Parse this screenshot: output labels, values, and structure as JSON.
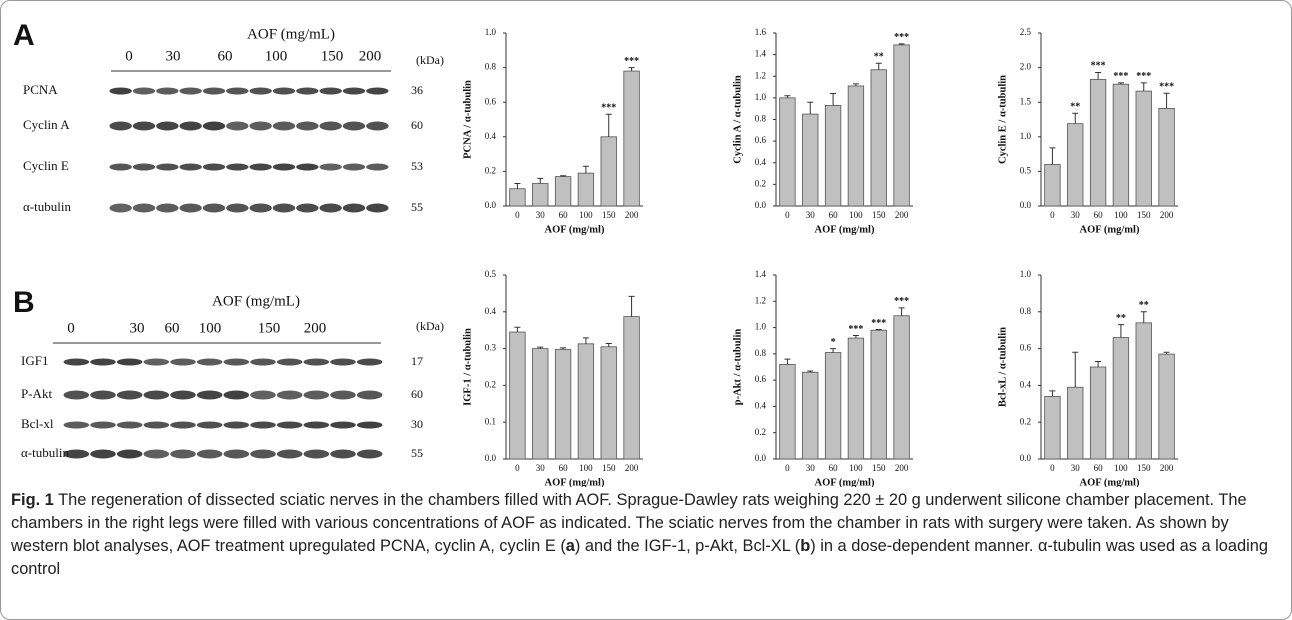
{
  "figure": {
    "panels": [
      {
        "label": "A",
        "blot": {
          "header": "AOF (mg/mL)",
          "doses": [
            "0",
            "30",
            "60",
            "100",
            "150",
            "200"
          ],
          "unit": "(kDa)",
          "rows": [
            {
              "name": "PCNA",
              "kda": 36
            },
            {
              "name": "Cyclin A",
              "kda": 60
            },
            {
              "name": "Cyclin E",
              "kda": 53
            },
            {
              "name": "α-tubulin",
              "kda": 55
            }
          ]
        }
      },
      {
        "label": "B",
        "blot": {
          "header": "AOF (mg/mL)",
          "doses": [
            "0",
            "30",
            "60",
            "100",
            "150",
            "200"
          ],
          "unit": "(kDa)",
          "rows": [
            {
              "name": "IGF1",
              "kda": 17
            },
            {
              "name": "P-Akt",
              "kda": 60
            },
            {
              "name": "Bcl-xl",
              "kda": 30
            },
            {
              "name": "α-tubulin",
              "kda": 55
            }
          ]
        }
      }
    ]
  },
  "chart_data": [
    {
      "type": "bar",
      "ylabel": "PCNA / α-tubulin",
      "xlabel": "AOF (mg/ml)",
      "color": "#c0c0c0",
      "categories": [
        "0",
        "30",
        "60",
        "100",
        "150",
        "200"
      ],
      "values": [
        0.1,
        0.13,
        0.17,
        0.19,
        0.4,
        0.78
      ],
      "errors": [
        0.03,
        0.03,
        0.005,
        0.04,
        0.13,
        0.02
      ],
      "annotations": [
        null,
        null,
        null,
        null,
        "***",
        "***"
      ],
      "ylim": [
        0,
        1.0
      ],
      "yticks": [
        {
          "value": 0,
          "label": "0.0"
        },
        0.2,
        0.4,
        0.6,
        0.8,
        {
          "value": 1.0,
          "label": "1.0"
        }
      ]
    },
    {
      "type": "bar",
      "ylabel": "Cyclin A / α-tubulin",
      "xlabel": "AOF (mg/ml)",
      "color": "#c0c0c0",
      "categories": [
        "0",
        "30",
        "60",
        "100",
        "150",
        "200"
      ],
      "values": [
        1.0,
        0.85,
        0.93,
        1.11,
        1.26,
        1.49
      ],
      "errors": [
        0.02,
        0.11,
        0.11,
        0.02,
        0.06,
        0.01
      ],
      "annotations": [
        null,
        null,
        null,
        null,
        "**",
        "***"
      ],
      "ylim": [
        0,
        1.6
      ],
      "yticks": [
        {
          "value": 0,
          "label": "0.0"
        },
        0.2,
        0.4,
        0.6,
        0.8,
        {
          "value": 1.0,
          "label": "1.0"
        },
        1.2,
        1.4,
        1.6
      ]
    },
    {
      "type": "bar",
      "ylabel": "Cyclin E / α-tubulin",
      "xlabel": "AOF (mg/ml)",
      "color": "#c0c0c0",
      "categories": [
        "0",
        "30",
        "60",
        "100",
        "150",
        "200"
      ],
      "values": [
        0.6,
        1.19,
        1.83,
        1.76,
        1.66,
        1.41
      ],
      "errors": [
        0.24,
        0.15,
        0.1,
        0.02,
        0.12,
        0.22
      ],
      "annotations": [
        null,
        "**",
        "***",
        "***",
        "***",
        "***"
      ],
      "ylim": [
        0,
        2.5
      ],
      "yticks": [
        {
          "value": 0,
          "label": "0.0"
        },
        0.5,
        {
          "value": 1.0,
          "label": "1.0"
        },
        1.5,
        {
          "value": 2.0,
          "label": "2.0"
        },
        2.5
      ]
    },
    {
      "type": "bar",
      "ylabel": "IGF-1 / α-tubulin",
      "xlabel": "AOF (mg/ml)",
      "color": "#c0c0c0",
      "categories": [
        "0",
        "30",
        "60",
        "100",
        "150",
        "200"
      ],
      "values": [
        0.345,
        0.3,
        0.298,
        0.313,
        0.305,
        0.387
      ],
      "errors": [
        0.013,
        0.004,
        0.004,
        0.016,
        0.009,
        0.055
      ],
      "annotations": [
        null,
        null,
        null,
        null,
        null,
        null
      ],
      "ylim": [
        0,
        0.5
      ],
      "yticks": [
        {
          "value": 0,
          "label": "0.0"
        },
        0.1,
        0.2,
        0.3,
        0.4,
        0.5
      ]
    },
    {
      "type": "bar",
      "ylabel": "p-Akt / α-tubulin",
      "xlabel": "AOF (mg/ml)",
      "color": "#c0c0c0",
      "categories": [
        "0",
        "30",
        "60",
        "100",
        "150",
        "200"
      ],
      "values": [
        0.72,
        0.66,
        0.81,
        0.92,
        0.98,
        1.09
      ],
      "errors": [
        0.04,
        0.01,
        0.03,
        0.02,
        0.005,
        0.06
      ],
      "annotations": [
        null,
        null,
        "*",
        "***",
        "***",
        "***"
      ],
      "ylim": [
        0,
        1.4
      ],
      "yticks": [
        {
          "value": 0,
          "label": "0.0"
        },
        0.2,
        0.4,
        0.6,
        0.8,
        {
          "value": 1.0,
          "label": "1.0"
        },
        1.2,
        1.4
      ]
    },
    {
      "type": "bar",
      "ylabel": "Bcl-xL / α-tubulin",
      "xlabel": "AOF (mg/ml)",
      "color": "#c0c0c0",
      "categories": [
        "0",
        "30",
        "60",
        "100",
        "150",
        "200"
      ],
      "values": [
        0.34,
        0.39,
        0.5,
        0.66,
        0.74,
        0.57
      ],
      "errors": [
        0.03,
        0.19,
        0.03,
        0.07,
        0.06,
        0.01
      ],
      "annotations": [
        null,
        null,
        null,
        "**",
        "**",
        null
      ],
      "ylim": [
        0,
        1.0
      ],
      "yticks": [
        {
          "value": 0,
          "label": "0.0"
        },
        0.2,
        0.4,
        0.6,
        0.8,
        {
          "value": 1.0,
          "label": "1.0"
        }
      ]
    }
  ],
  "caption": {
    "label": "Fig. 1",
    "text_1": " The regeneration of dissected sciatic nerves in the chambers filled with AOF. Sprague-Dawley rats weighing 220 ± 20 g underwent silicone chamber placement. The chambers in the right legs were filled with various concentrations of AOF as indicated. The sciatic nerves from the chamber in rats with surgery were taken. As shown by western blot analyses, AOF treatment upregulated PCNA, cyclin A, cyclin E (",
    "a": "a",
    "text_2": ") and the IGF-1, p-Akt, Bcl-XL (",
    "b": "b",
    "text_3": ") in a dose-dependent manner. α-tubulin was used as a loading control"
  }
}
